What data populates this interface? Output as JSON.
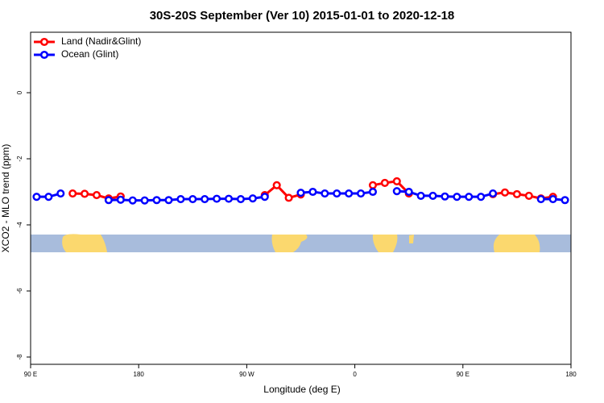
{
  "chart_data": {
    "type": "line",
    "title": "30S-20S September (Ver 10)   2015-01-01 to 2020-12-18",
    "x_label": "Longitude (deg E)",
    "y_label": "XCO2 - MLO trend (ppm)",
    "x": [
      95,
      105,
      115,
      125,
      135,
      145,
      155,
      165,
      175,
      185,
      195,
      205,
      215,
      225,
      235,
      245,
      255,
      265,
      275,
      285,
      295,
      305,
      315,
      325,
      335,
      345,
      355,
      365,
      375,
      385,
      395,
      405,
      415,
      425,
      435,
      445,
      455,
      465,
      475,
      485,
      495,
      505,
      515,
      525,
      535
    ],
    "series": [
      {
        "name": "Land (Nadir&Glint)",
        "color": "#ff0000",
        "values": [
          null,
          null,
          null,
          -3.05,
          -3.06,
          -3.1,
          -3.2,
          -3.14,
          null,
          null,
          null,
          null,
          null,
          null,
          null,
          null,
          null,
          null,
          null,
          -3.1,
          -2.8,
          -3.18,
          -3.08,
          null,
          null,
          null,
          null,
          null,
          -2.8,
          -2.73,
          -2.68,
          -3.05,
          null,
          null,
          null,
          null,
          null,
          null,
          -3.07,
          -3.02,
          -3.07,
          -3.12,
          -3.2,
          -3.15,
          null
        ]
      },
      {
        "name": "Ocean (Glint)",
        "color": "#0000ff",
        "values": [
          -3.15,
          -3.15,
          -3.05,
          null,
          null,
          null,
          -3.25,
          -3.24,
          -3.26,
          -3.26,
          -3.25,
          -3.25,
          -3.22,
          -3.22,
          -3.22,
          -3.21,
          -3.21,
          -3.22,
          -3.2,
          -3.15,
          null,
          null,
          -3.03,
          -3.0,
          -3.05,
          -3.05,
          -3.05,
          -3.05,
          -3.0,
          null,
          -2.98,
          -3.0,
          -3.12,
          -3.12,
          -3.14,
          -3.15,
          -3.15,
          -3.15,
          -3.05,
          null,
          null,
          null,
          -3.22,
          -3.22,
          -3.25
        ]
      }
    ],
    "xlim": [
      90,
      540
    ],
    "xticks": [
      {
        "value": 90,
        "label": "90 E"
      },
      180,
      {
        "value": 270,
        "label": "90 W"
      },
      {
        "value": 360,
        "label": "0"
      },
      {
        "value": 450,
        "label": "90 E"
      },
      {
        "value": 540,
        "label": "180"
      }
    ],
    "ylim": [
      -8.22,
      1.83
    ],
    "yticks": [
      0,
      -2,
      -4,
      -6,
      -8
    ],
    "legend": "top-left"
  }
}
